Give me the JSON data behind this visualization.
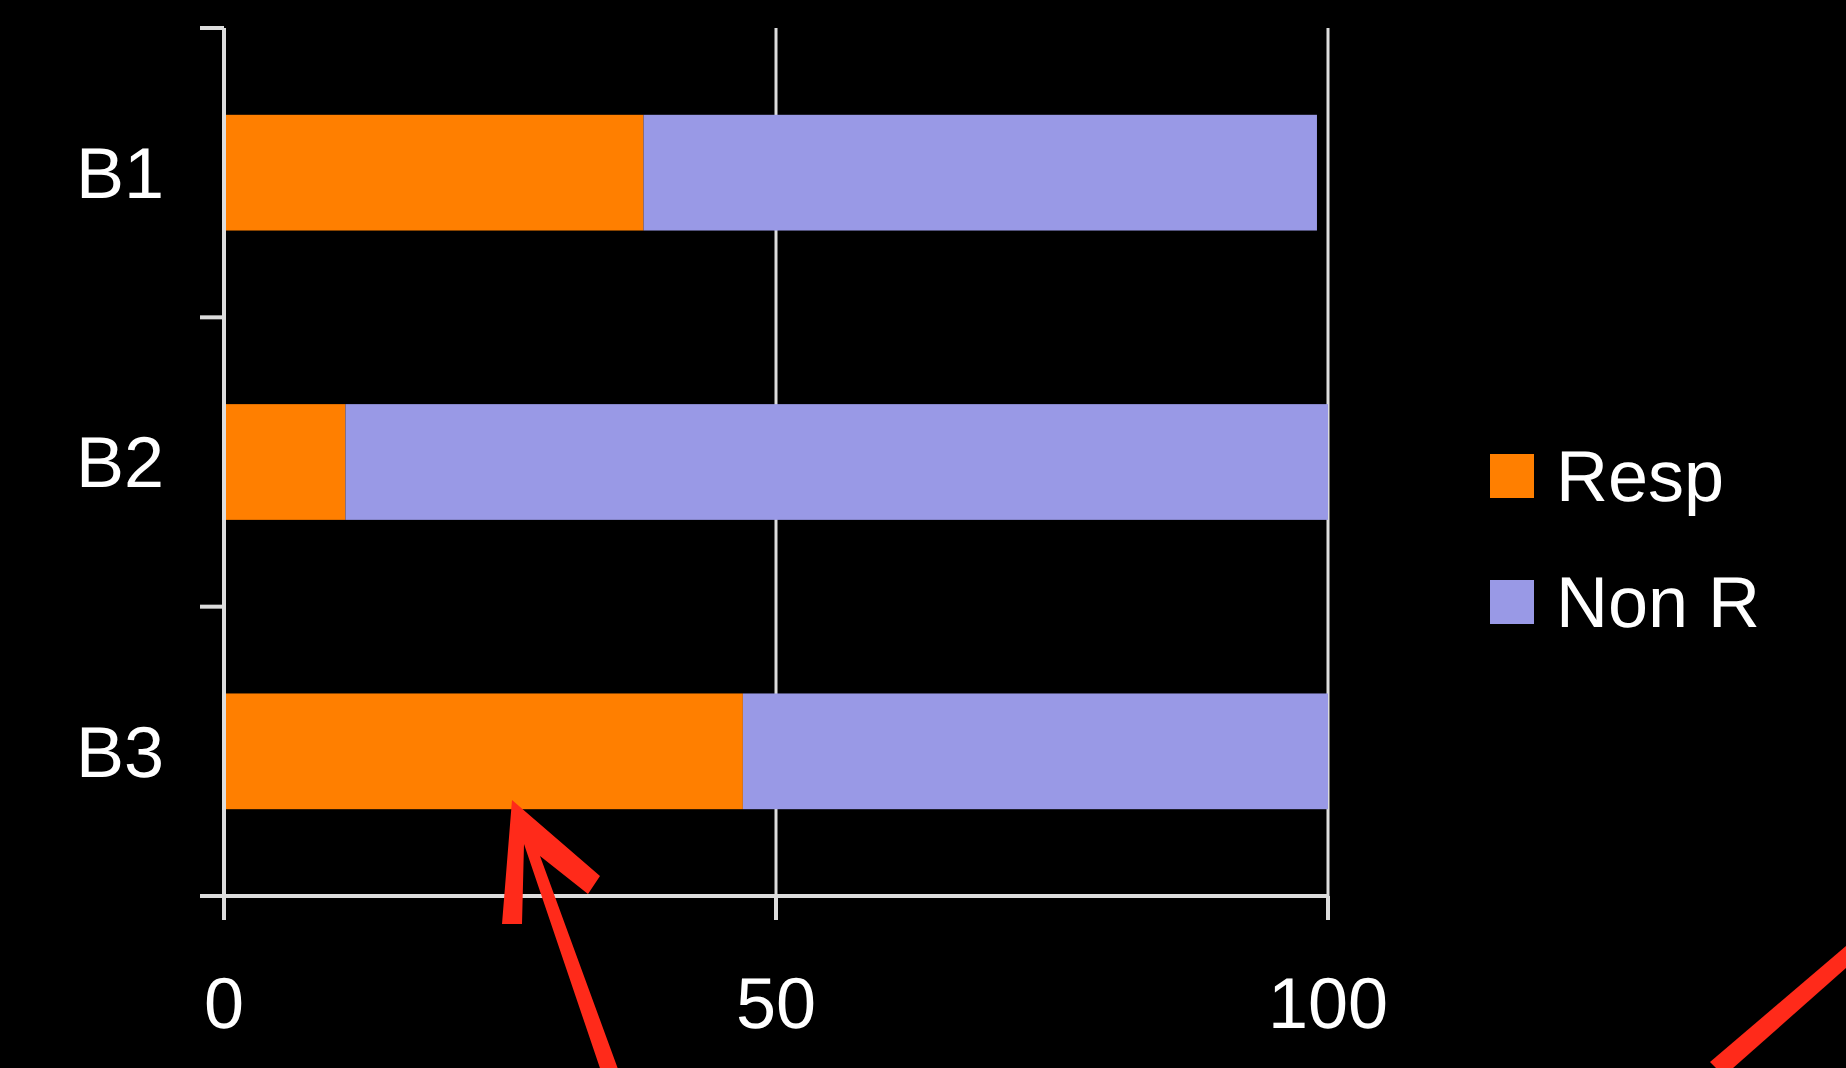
{
  "chart_data": {
    "type": "bar",
    "orientation": "horizontal",
    "stacked": true,
    "categories": [
      "B1",
      "B2",
      "B3"
    ],
    "series": [
      {
        "name": "Resp",
        "color": "#ff7f00",
        "values": [
          38,
          11,
          47
        ]
      },
      {
        "name": "Non R",
        "color": "#9999e6",
        "values": [
          61,
          89,
          53
        ]
      }
    ],
    "xlim": [
      0,
      100
    ],
    "xticks": [
      0,
      50,
      100
    ],
    "grid": "x",
    "legend": "right"
  }
}
